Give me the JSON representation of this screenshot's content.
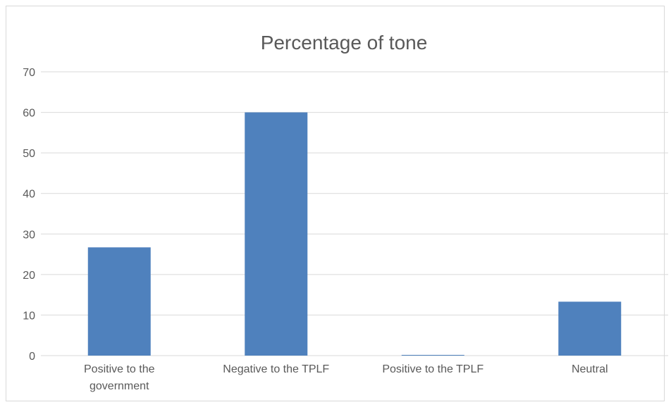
{
  "chart_data": {
    "type": "bar",
    "title": "Percentage of tone",
    "xlabel": "",
    "ylabel": "",
    "categories": [
      [
        "Positive to the",
        "government"
      ],
      [
        "Negative to the TPLF"
      ],
      [
        "Positive to the TPLF"
      ],
      [
        "Neutral"
      ]
    ],
    "values": [
      26.7,
      60,
      0,
      13.3
    ],
    "ylim": [
      0,
      70
    ],
    "yticks": [
      0,
      10,
      20,
      30,
      40,
      50,
      60,
      70
    ],
    "grid": true,
    "bar_color": "#4f81bd",
    "grid_color": "#d9d9d9"
  }
}
